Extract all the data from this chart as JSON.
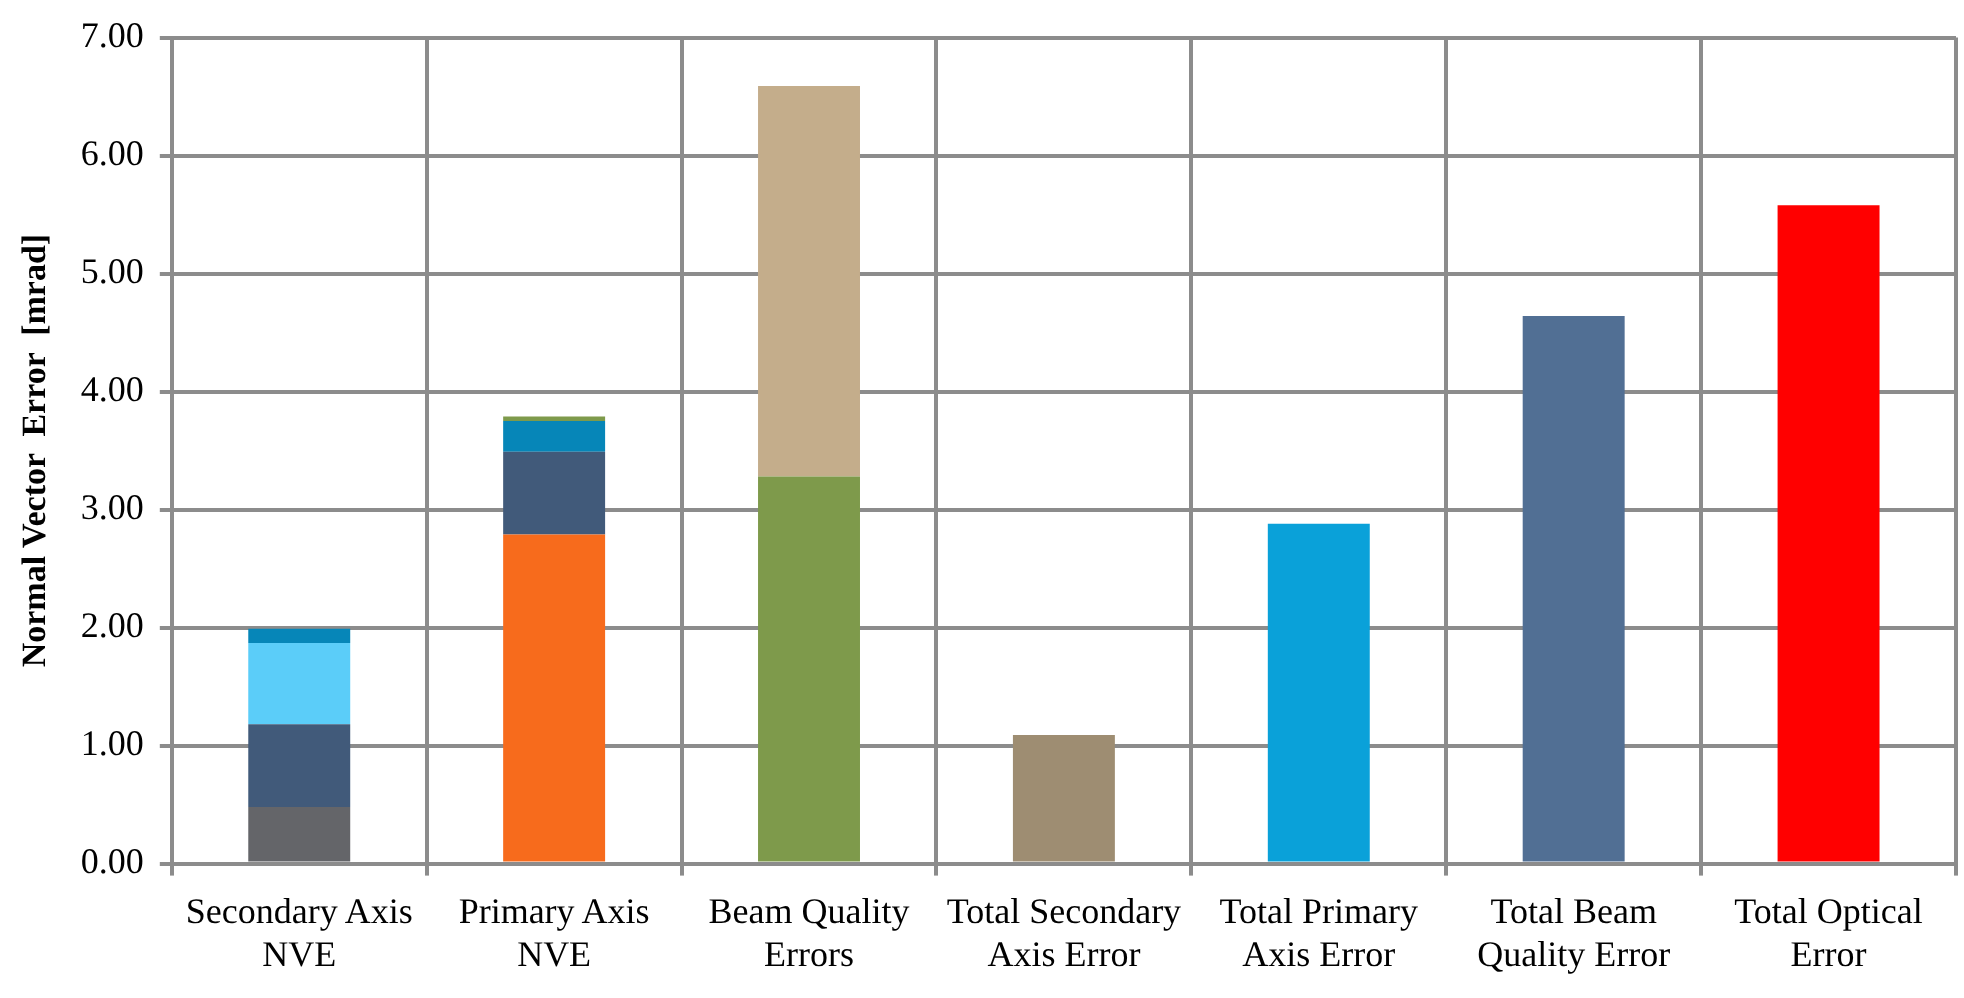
{
  "chart_data": {
    "type": "bar",
    "stacked": true,
    "ylabel": "Normal Vector  Error  [mrad]",
    "categories": [
      "Secondary Axis NVE",
      "Primary Axis NVE",
      "Beam Quality Errors",
      "Total Secondary Axis Error",
      "Total Primary Axis Error",
      "Total Beam Quality Error",
      "Total Optical Error"
    ],
    "series": [
      {
        "values": [
          0.48,
          2.79,
          3.28,
          1.09,
          2.88,
          4.64,
          5.58
        ],
        "colors": [
          "#646569",
          "#f76b1c",
          "#7e9a4b",
          "#9e8d72",
          "#0aa1d9",
          "#516f94",
          "#ff0000"
        ]
      },
      {
        "values": [
          0.7,
          0.7,
          3.31,
          null,
          null,
          null,
          null
        ],
        "colors": [
          "#415a7a",
          "#415a7a",
          "#c4ad8b",
          "#ffffff",
          "#ffffff",
          "#ffffff",
          "#ffffff"
        ]
      },
      {
        "values": [
          0.69,
          0.26,
          null,
          null,
          null,
          null,
          null
        ],
        "colors": [
          "#5bcdf9",
          "#0686b8",
          "#ffffff",
          "#ffffff",
          "#ffffff",
          "#ffffff",
          "#ffffff"
        ]
      },
      {
        "values": [
          0.12,
          0.04,
          null,
          null,
          null,
          null,
          null
        ],
        "colors": [
          "#0686b8",
          "#7e9a4b",
          "#ffffff",
          "#ffffff",
          "#ffffff",
          "#ffffff",
          "#ffffff"
        ]
      }
    ],
    "ylim": [
      0,
      7
    ],
    "yticks": [
      {
        "value": 0,
        "label": "0.00"
      },
      {
        "value": 1,
        "label": "1.00"
      },
      {
        "value": 2,
        "label": "2.00"
      },
      {
        "value": 3,
        "label": "3.00"
      },
      {
        "value": 4,
        "label": "4.00"
      },
      {
        "value": 5,
        "label": "5.00"
      },
      {
        "value": 6,
        "label": "6.00"
      },
      {
        "value": 7,
        "label": "7.00"
      }
    ],
    "grid": true,
    "legend": false
  }
}
